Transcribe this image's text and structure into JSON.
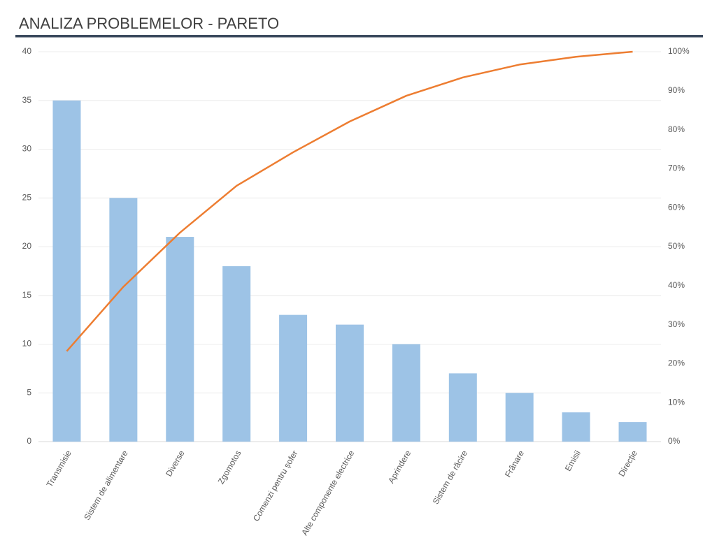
{
  "chart_data": {
    "type": "bar",
    "title": "ANALIZA PROBLEMELOR - PARETO",
    "categories": [
      "Transmisie",
      "Sistem de alimentare",
      "Diverse",
      "Zgomotos",
      "Comenzi pentru șofer",
      "Alte componente electrice",
      "Aprindere",
      "Sistem de răcire",
      "Frânare",
      "Emisii",
      "Direcție"
    ],
    "series": [
      {
        "color": "#9dc3e6",
        "values": [
          35,
          25,
          21,
          18,
          13,
          12,
          10,
          7,
          5,
          3,
          2
        ]
      },
      {
        "type": "line",
        "axis": "y2",
        "color": "#ed7d31",
        "values": [
          23.2,
          39.7,
          53.6,
          65.6,
          74.2,
          82.1,
          88.7,
          93.4,
          96.7,
          98.7,
          100
        ]
      }
    ],
    "ylim": [
      0,
      40
    ],
    "yticks": [
      0,
      5,
      10,
      15,
      20,
      25,
      30,
      35,
      40
    ],
    "y2lim": [
      0,
      100
    ],
    "y2ticks": [
      {
        "value": 0,
        "label": "0%"
      },
      {
        "value": 10,
        "label": "10%"
      },
      {
        "value": 20,
        "label": "20%"
      },
      {
        "value": 30,
        "label": "30%"
      },
      {
        "value": 40,
        "label": "40%"
      },
      {
        "value": 50,
        "label": "50%"
      },
      {
        "value": 60,
        "label": "60%"
      },
      {
        "value": 70,
        "label": "70%"
      },
      {
        "value": 80,
        "label": "80%"
      },
      {
        "value": 90,
        "label": "90%"
      },
      {
        "value": 100,
        "label": "100%"
      }
    ],
    "grid": true
  }
}
